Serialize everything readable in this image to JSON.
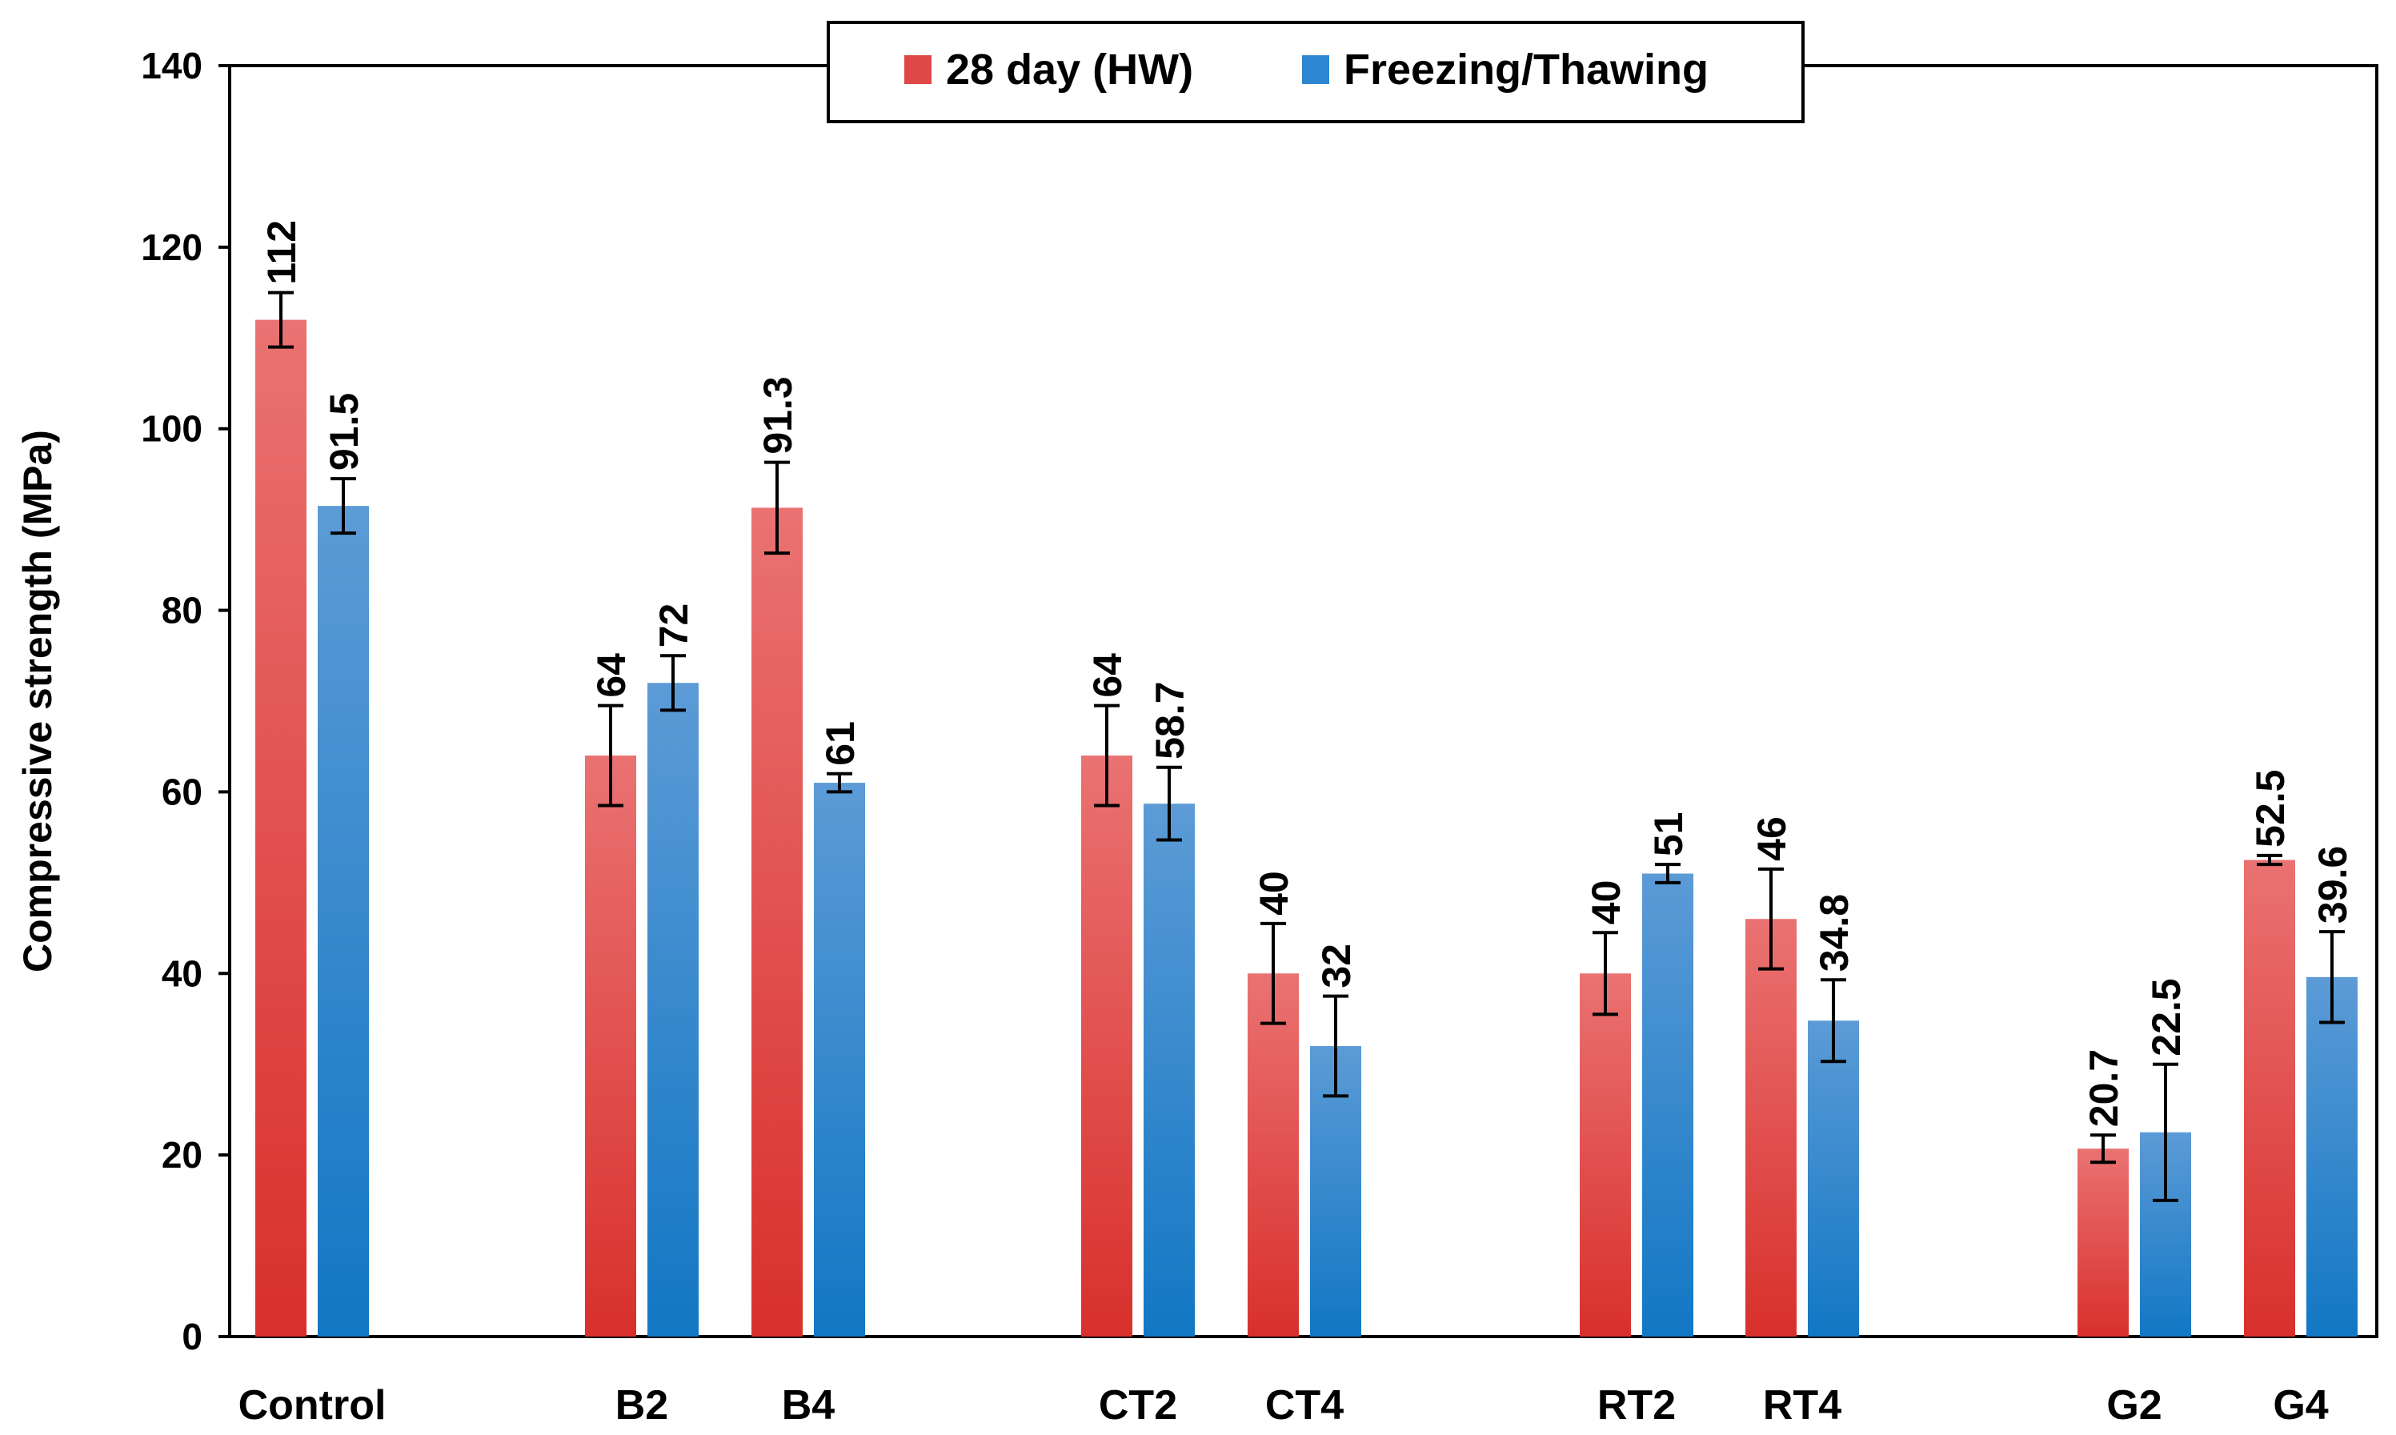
{
  "chart_data": {
    "type": "bar",
    "ylabel": "Compressive strength (MPa)",
    "ylim": [
      0,
      140
    ],
    "yticks": [
      "0",
      "20",
      "40",
      "60",
      "80",
      "100",
      "120",
      "140"
    ],
    "grid": false,
    "legend_position": "top-center",
    "categories": [
      "Control",
      "B2",
      "B4",
      "CT2",
      "CT4",
      "RT2",
      "RT4",
      "G2",
      "G4"
    ],
    "series": [
      {
        "name": "28 day (HW)",
        "color": "#e04848",
        "values": [
          112,
          64,
          91.3,
          64,
          40,
          40,
          46,
          20.7,
          52.5
        ],
        "labels": [
          "112",
          "64",
          "91.3",
          "64",
          "40",
          "40",
          "46",
          "20.7",
          "52.5"
        ],
        "error": [
          3,
          5.5,
          5,
          5.5,
          5.5,
          4.5,
          5.5,
          1.5,
          0.5
        ]
      },
      {
        "name": "Freezing/Thawing",
        "color": "#2e86d0",
        "values": [
          91.5,
          72,
          61,
          58.7,
          32,
          51,
          34.8,
          22.5,
          39.6
        ],
        "labels": [
          "91.5",
          "72",
          "61",
          "58.7",
          "32",
          "51",
          "34.8",
          "22.5",
          "39.6"
        ],
        "error": [
          3,
          3,
          1,
          4,
          5.5,
          1,
          4.5,
          7.5,
          5
        ]
      }
    ]
  }
}
